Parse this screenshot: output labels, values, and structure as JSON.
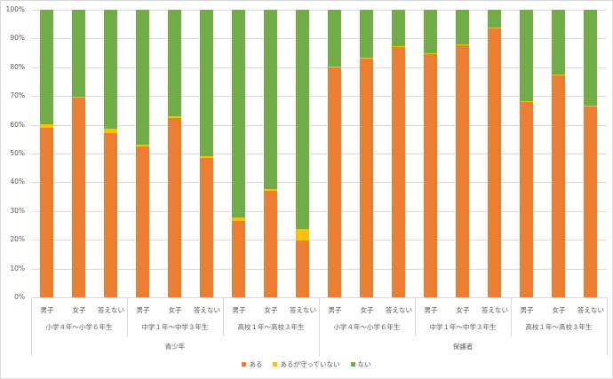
{
  "chart_data": {
    "type": "bar",
    "stacked": true,
    "percent": true,
    "title": "",
    "xlabel": "",
    "ylabel": "",
    "ylim": [
      0,
      100
    ],
    "yticks": [
      "0%",
      "10%",
      "20%",
      "30%",
      "40%",
      "50%",
      "60%",
      "70%",
      "80%",
      "90%",
      "100%"
    ],
    "grid": true,
    "legend_position": "bottom",
    "top_groups": [
      {
        "label": "青少年",
        "subgroups": [
          "小学４年～小学６年生",
          "中学１年～中学３年生",
          "高校１年～高校３年生"
        ]
      },
      {
        "label": "保護者",
        "subgroups": [
          "小学４年～小学６年生",
          "中学１年～中学３年生",
          "高校１年～高校３年生"
        ]
      }
    ],
    "subgroup_labels": [
      "小学４年～小学６年生",
      "中学１年～中学３年生",
      "高校１年～高校３年生",
      "小学４年～小学６年生",
      "中学１年～中学３年生",
      "高校１年～高校３年生"
    ],
    "categories": [
      "男子",
      "女子",
      "答えない",
      "男子",
      "女子",
      "答えない",
      "男子",
      "女子",
      "答えない",
      "男子",
      "女子",
      "答えない",
      "男子",
      "女子",
      "答えない",
      "男子",
      "女子",
      "答えない"
    ],
    "series": [
      {
        "name": "ある",
        "color": "#ed7d31",
        "values": [
          59.1,
          69.6,
          57.1,
          52.5,
          62.3,
          48.5,
          26.7,
          36.9,
          19.7,
          79.9,
          83.2,
          87.0,
          84.6,
          87.8,
          93.5,
          68.1,
          77.2,
          66.5
        ]
      },
      {
        "name": "あるが守っていない",
        "color": "#ffc000",
        "values": [
          1.0,
          0.3,
          1.5,
          0.6,
          0.8,
          0.7,
          1.0,
          0.9,
          4.0,
          0.2,
          0.2,
          0.2,
          0.2,
          0.2,
          0.2,
          0.2,
          0.2,
          0.2
        ]
      },
      {
        "name": "ない",
        "color": "#70ad47",
        "values": [
          39.9,
          30.1,
          41.4,
          46.9,
          36.9,
          50.8,
          72.3,
          62.2,
          76.3,
          19.9,
          16.6,
          12.8,
          15.2,
          12.0,
          6.3,
          31.7,
          22.6,
          33.3
        ]
      }
    ]
  },
  "legend": [
    {
      "label": "ある",
      "color": "#ed7d31"
    },
    {
      "label": "あるが守っていない",
      "color": "#ffc000"
    },
    {
      "label": "ない",
      "color": "#70ad47"
    }
  ]
}
